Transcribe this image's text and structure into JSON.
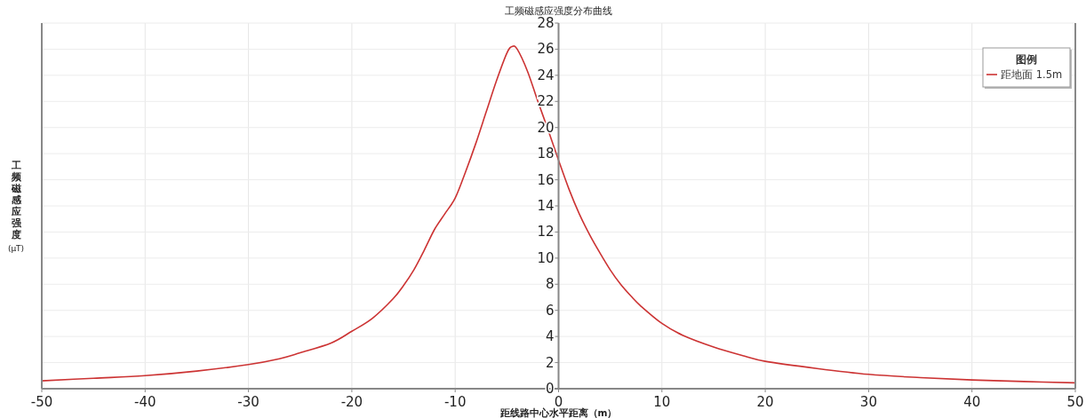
{
  "chart_data": {
    "type": "line",
    "title": "工频磁感应强度分布曲线",
    "xlabel": "距线路中心水平距离（m）",
    "ylabel": "工频磁感应强度(μT)",
    "legend_title": "图例",
    "x": [
      -50,
      -45,
      -40,
      -35,
      -30,
      -27,
      -25,
      -22,
      -20,
      -18,
      -16,
      -15,
      -14,
      -13,
      -12,
      -11,
      -10,
      -9,
      -8,
      -7,
      -6,
      -5,
      -4.5,
      -4,
      -3,
      -2,
      -1,
      0,
      1,
      2,
      3,
      4,
      5,
      6,
      7,
      8,
      10,
      12,
      15,
      18,
      20,
      25,
      30,
      35,
      40,
      45,
      50
    ],
    "series": [
      {
        "name": "距地面 1.5m",
        "color": "#cc3333",
        "values": [
          0.6,
          0.8,
          1.0,
          1.35,
          1.85,
          2.3,
          2.75,
          3.5,
          4.4,
          5.4,
          6.9,
          7.9,
          9.1,
          10.6,
          12.2,
          13.4,
          14.6,
          16.6,
          18.8,
          21.2,
          23.6,
          25.7,
          26.2,
          26.0,
          24.3,
          22.0,
          19.8,
          17.5,
          15.3,
          13.4,
          11.8,
          10.4,
          9.1,
          8.0,
          7.1,
          6.3,
          5.0,
          4.1,
          3.2,
          2.5,
          2.1,
          1.55,
          1.1,
          0.85,
          0.67,
          0.55,
          0.45
        ]
      }
    ],
    "xlim": [
      -50,
      50
    ],
    "xticks": [
      -50,
      -40,
      -30,
      -20,
      -10,
      0,
      10,
      20,
      30,
      40,
      50
    ],
    "ylim": [
      0,
      28
    ],
    "yticks": [
      0,
      2,
      4,
      6,
      8,
      10,
      12,
      14,
      16,
      18,
      20,
      22,
      24,
      26,
      28
    ],
    "grid": true,
    "legend": "top right",
    "line_style": "solid"
  }
}
